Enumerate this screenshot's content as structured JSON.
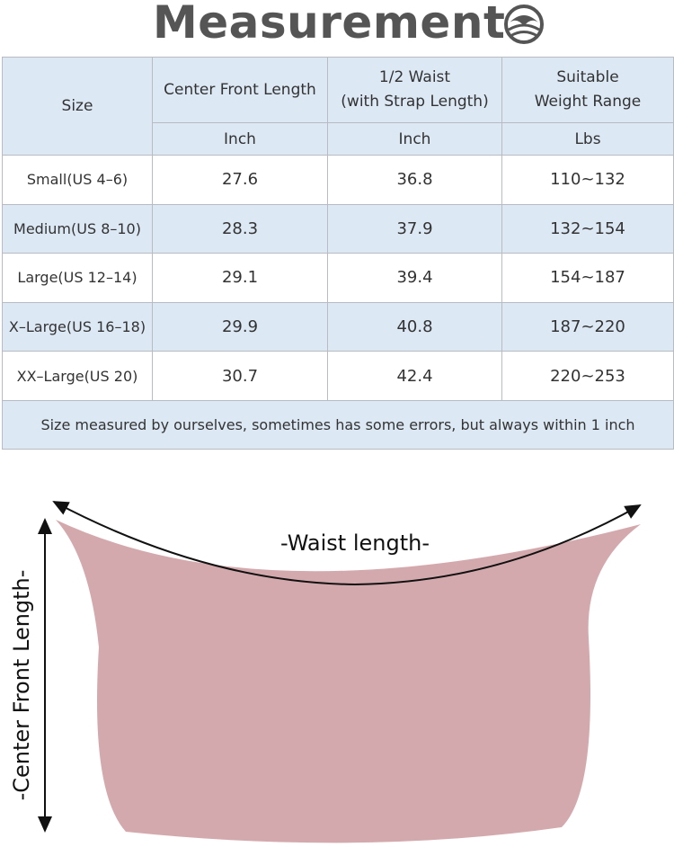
{
  "header": {
    "title": "Measurement"
  },
  "table": {
    "columns": [
      "Size",
      "Center Front Length",
      "1/2 Waist\n(with Strap Length)",
      "Suitable\nWeight Range"
    ],
    "units": [
      "Inch",
      "Inch",
      "Lbs"
    ],
    "rows": [
      [
        "Small(US 4–6)",
        27.6,
        36.8,
        "110~132"
      ],
      [
        "Medium(US 8–10)",
        28.3,
        37.9,
        "132~154"
      ],
      [
        "Large(US 12–14)",
        29.1,
        39.4,
        "154~187"
      ],
      [
        "X–Large(US 16–18)",
        29.9,
        40.8,
        "187~220"
      ],
      [
        "XX–Large(US 20)",
        30.7,
        42.4,
        "220~253"
      ]
    ],
    "note": "Size measured by ourselves, sometimes has some errors, but always within 1 inch"
  },
  "diagram": {
    "waist_label": "-Waist length-",
    "length_label": "-Center Front Length-"
  }
}
